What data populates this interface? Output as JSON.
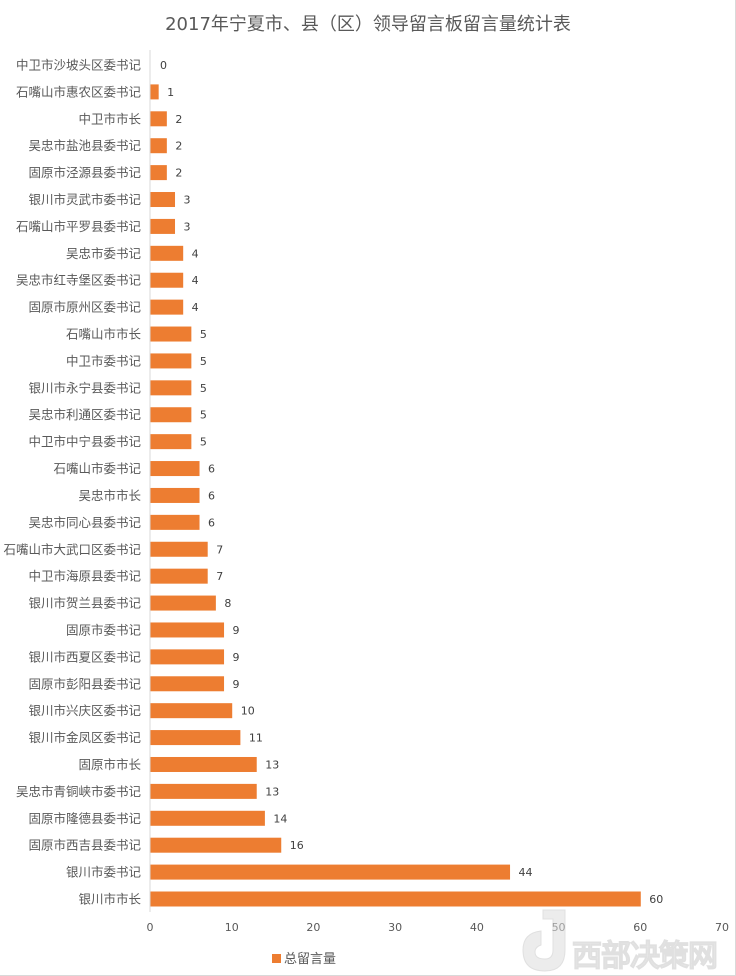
{
  "chart_data": {
    "type": "bar",
    "orientation": "horizontal",
    "title": "2017年宁夏市、县（区）领导留言板留言量统计表",
    "categories": [
      "中卫市沙坡头区委书记",
      "石嘴山市惠农区委书记",
      "中卫市市长",
      "吴忠市盐池县委书记",
      "固原市泾源县委书记",
      "银川市灵武市委书记",
      "石嘴山市平罗县委书记",
      "吴忠市委书记",
      "吴忠市红寺堡区委书记",
      "固原市原州区委书记",
      "石嘴山市市长",
      "中卫市委书记",
      "银川市永宁县委书记",
      "吴忠市利通区委书记",
      "中卫市中宁县委书记",
      "石嘴山市委书记",
      "吴忠市市长",
      "吴忠市同心县委书记",
      "石嘴山市大武口区委书记",
      "中卫市海原县委书记",
      "银川市贺兰县委书记",
      "固原市委书记",
      "银川市西夏区委书记",
      "固原市彭阳县委书记",
      "银川市兴庆区委书记",
      "银川市金凤区委书记",
      "固原市市长",
      "吴忠市青铜峡市委书记",
      "固原市隆德县委书记",
      "固原市西吉县委书记",
      "银川市委书记",
      "银川市市长"
    ],
    "series": [
      {
        "name": "总留言量",
        "values": [
          0,
          1,
          2,
          2,
          2,
          3,
          3,
          4,
          4,
          4,
          5,
          5,
          5,
          5,
          5,
          6,
          6,
          6,
          7,
          7,
          8,
          9,
          9,
          9,
          10,
          11,
          13,
          13,
          14,
          16,
          44,
          60
        ],
        "color": "#ed7d31"
      }
    ],
    "xlim": [
      0,
      70
    ],
    "xticks": [
      "0",
      "10",
      "20",
      "30",
      "40",
      "50",
      "60",
      "70"
    ],
    "grid": false,
    "legend": "bottom",
    "data_labels": true
  },
  "watermark": "西部决策网"
}
